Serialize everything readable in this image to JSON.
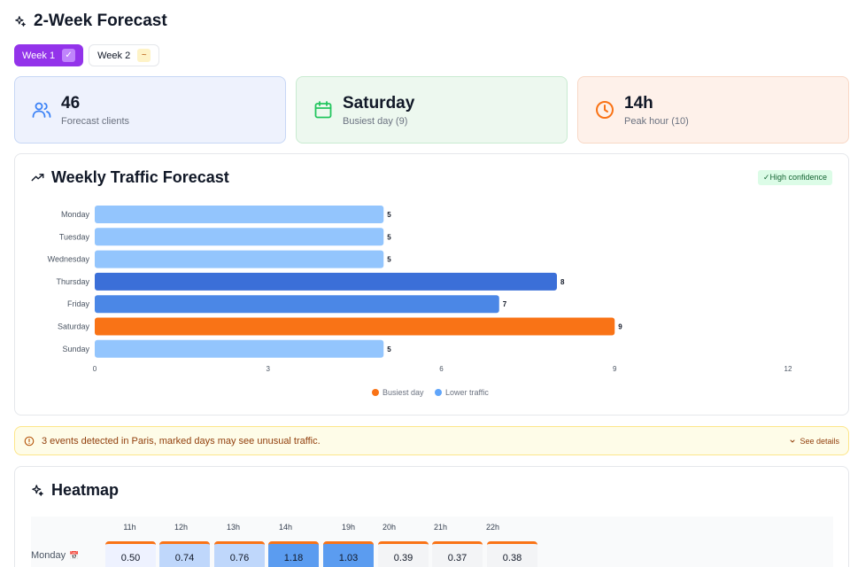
{
  "header": {
    "title": "2-Week Forecast"
  },
  "tabs": [
    {
      "label": "Week 1",
      "badge": "✓",
      "active": true
    },
    {
      "label": "Week 2",
      "badge": "~",
      "active": false
    }
  ],
  "stats": [
    {
      "value": "46",
      "label": "Forecast clients",
      "icon": "users-icon"
    },
    {
      "value": "Saturday",
      "label": "Busiest day (9)",
      "icon": "calendar-icon"
    },
    {
      "value": "14h",
      "label": "Peak hour (10)",
      "icon": "clock-icon"
    }
  ],
  "traffic": {
    "title": "Weekly Traffic Forecast",
    "confidence": "✓High confidence"
  },
  "chart_data": {
    "type": "bar",
    "orientation": "horizontal",
    "title": "",
    "xlabel": "",
    "ylabel": "",
    "categories": [
      "Monday",
      "Tuesday",
      "Wednesday",
      "Thursday",
      "Friday",
      "Saturday",
      "Sunday"
    ],
    "values": [
      5,
      5,
      5,
      8,
      7,
      9,
      5
    ],
    "bar_colors": [
      "#93c5fd",
      "#93c5fd",
      "#93c5fd",
      "#3b6fd8",
      "#4b87e6",
      "#f97316",
      "#93c5fd"
    ],
    "xlim": [
      0,
      12
    ],
    "xticks": [
      0,
      3,
      6,
      9,
      12
    ],
    "grid": false,
    "legend": {
      "placement": "bottom-center",
      "entries": [
        {
          "label": "Busiest day",
          "color": "#f97316"
        },
        {
          "label": "Lower traffic",
          "color": "#60a5fa"
        }
      ]
    }
  },
  "alert": {
    "message": "3 events detected in Paris, marked days may see unusual traffic.",
    "details": "See details"
  },
  "heatmap": {
    "title": "Heatmap",
    "hours": [
      "11h",
      "12h",
      "13h",
      "14h",
      "19h",
      "20h",
      "21h",
      "22h"
    ],
    "rows": [
      {
        "day": "Monday",
        "marker": "📅",
        "values": [
          "0.50",
          "0.74",
          "0.76",
          "1.18",
          "1.03",
          "0.39",
          "0.37",
          "0.38"
        ],
        "colors": [
          "#eef2ff",
          "#bfd7fb",
          "#bfd7fb",
          "#5b9cf0",
          "#5b9cf0",
          "#f3f4f6",
          "#f3f4f6",
          "#f3f4f6"
        ]
      }
    ]
  },
  "colors": {
    "accent": "#9333ea",
    "orange": "#f97316",
    "blue": "#3b6fd8"
  }
}
